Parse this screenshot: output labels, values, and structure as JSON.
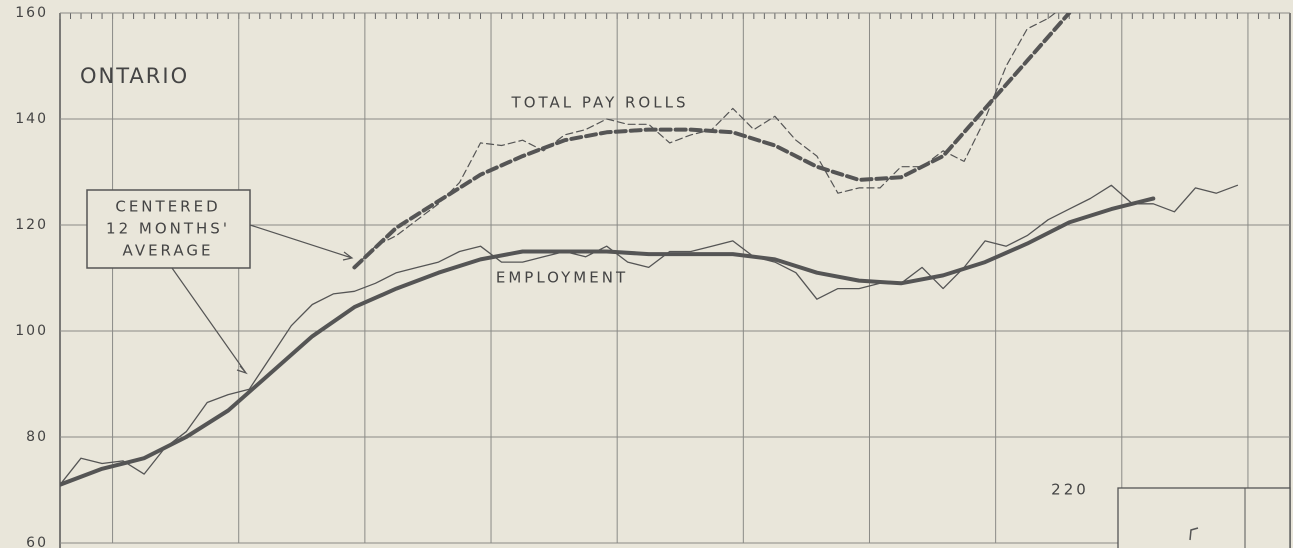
{
  "chart_data": {
    "type": "line",
    "title": "ONTARIO",
    "annotations": {
      "pay_rolls": "TOTAL PAY ROLLS",
      "employment": "EMPLOYMENT",
      "average_box": [
        "CENTERED",
        "12 MONTHS'",
        "AVERAGE"
      ],
      "corner": "220"
    },
    "xlim": [
      0,
      117
    ],
    "xticks": [
      5,
      17,
      29,
      41,
      53,
      65,
      77,
      89,
      101,
      113
    ],
    "ylim": [
      60,
      160
    ],
    "yticks": [
      60,
      80,
      100,
      120,
      140,
      160
    ],
    "grid": true,
    "series": [
      {
        "name": "EMPLOYMENT",
        "color": "#555",
        "width": 1.3,
        "dash": false,
        "x": [
          0,
          2,
          4,
          6,
          8,
          10,
          12,
          14,
          16,
          18,
          20,
          22,
          24,
          26,
          28,
          30,
          32,
          34,
          36,
          38,
          40,
          42,
          44,
          46,
          48,
          50,
          52,
          54,
          56,
          58,
          60,
          62,
          64,
          66,
          68,
          70,
          72,
          74,
          76,
          78,
          80,
          82,
          84,
          86,
          88,
          90,
          92,
          94,
          96,
          98,
          100,
          102,
          104,
          106,
          108,
          110,
          112
        ],
        "values": [
          71,
          76,
          75,
          75.5,
          73,
          78,
          81,
          86.5,
          88,
          89,
          95,
          101,
          105,
          107,
          107.5,
          109,
          111,
          112,
          113,
          115,
          116,
          113,
          113,
          114,
          115,
          114,
          116,
          113,
          112,
          115,
          115,
          116,
          117,
          114,
          113,
          111,
          106,
          108,
          108,
          109,
          109,
          112,
          108,
          112,
          117,
          116,
          118,
          121,
          123,
          125,
          127.5,
          124,
          124,
          122.5,
          127,
          126,
          127.5
        ]
      },
      {
        "color": "#555",
        "width": 4,
        "dash": false,
        "x": [
          0,
          4,
          8,
          12,
          16,
          20,
          24,
          28,
          32,
          36,
          40,
          44,
          48,
          52,
          56,
          60,
          64,
          68,
          72,
          76,
          80,
          84,
          88,
          92,
          96,
          100,
          104
        ],
        "values": [
          71,
          74,
          76,
          80,
          85,
          92,
          99,
          104.5,
          108,
          111,
          113.5,
          115,
          115,
          115,
          114.5,
          114.5,
          114.5,
          113.5,
          111,
          109.5,
          109,
          110.5,
          113,
          116.5,
          120.5,
          123,
          125
        ]
      },
      {
        "name": "TOTAL PAY ROLLS",
        "color": "#555",
        "width": 1.2,
        "dash": true,
        "x": [
          28,
          30,
          32,
          34,
          36,
          38,
          40,
          42,
          44,
          46,
          48,
          50,
          52,
          54,
          56,
          58,
          60,
          62,
          64,
          66,
          68,
          70,
          72,
          74,
          76,
          78,
          80,
          82,
          84,
          86,
          88,
          90,
          92,
          94,
          96
        ],
        "values": [
          112,
          116,
          118,
          121,
          124,
          128,
          135.5,
          135,
          136,
          134,
          137,
          138,
          140,
          139,
          139,
          135.5,
          137,
          138,
          142,
          138,
          140.5,
          136,
          133,
          126,
          127,
          127,
          131,
          131,
          134,
          132,
          140,
          150,
          157,
          159,
          162
        ]
      },
      {
        "color": "#555",
        "width": 4,
        "dash": true,
        "x": [
          28,
          32,
          36,
          40,
          44,
          48,
          52,
          56,
          60,
          64,
          68,
          72,
          76,
          80,
          84,
          88,
          92,
          96
        ],
        "values": [
          112,
          119.5,
          124.5,
          129.5,
          133,
          136,
          137.5,
          138,
          138,
          137.5,
          135,
          131,
          128.5,
          129,
          133,
          142,
          151,
          160
        ]
      }
    ]
  }
}
